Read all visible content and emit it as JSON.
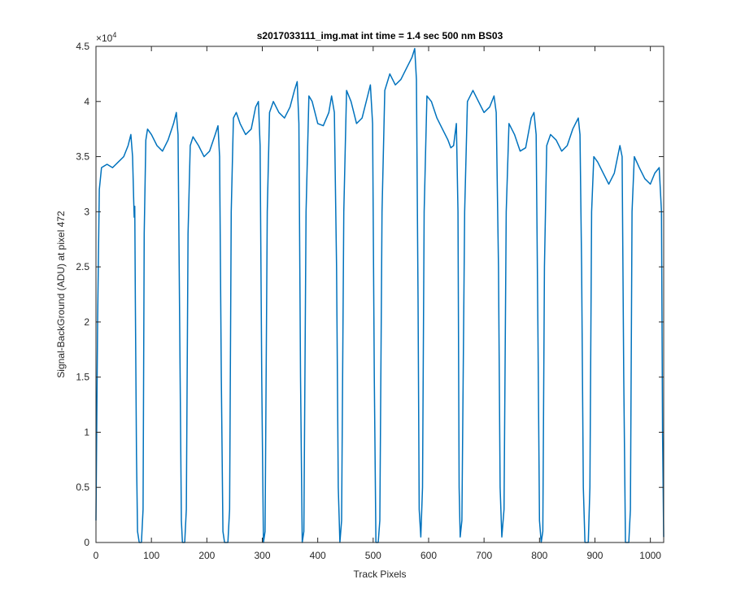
{
  "chart_data": {
    "type": "line",
    "title": "s2017033111_img.mat int time = 1.4 sec  500 nm BS03",
    "xlabel": "Track Pixels",
    "ylabel": "Signal-BackGround (ADU) at pixel 472",
    "xlim": [
      0,
      1024
    ],
    "ylim": [
      0,
      45000
    ],
    "x_ticks": [
      0,
      100,
      200,
      300,
      400,
      500,
      600,
      700,
      800,
      900,
      1000
    ],
    "y_ticks": [
      0,
      0.5,
      1,
      1.5,
      2,
      2.5,
      3,
      3.5,
      4,
      4.5
    ],
    "y_exponent_label": "×10",
    "y_exponent_power": "4",
    "grid": false,
    "series": [
      {
        "color": "#0072BD",
        "points": [
          [
            0,
            2000
          ],
          [
            3,
            20000
          ],
          [
            6,
            32000
          ],
          [
            10,
            34000
          ],
          [
            20,
            34300
          ],
          [
            30,
            34000
          ],
          [
            40,
            34500
          ],
          [
            50,
            35000
          ],
          [
            58,
            36000
          ],
          [
            63,
            37000
          ],
          [
            66,
            35000
          ],
          [
            68,
            31000
          ],
          [
            69,
            29500
          ],
          [
            70,
            30500
          ],
          [
            71,
            22000
          ],
          [
            73,
            8000
          ],
          [
            75,
            1000
          ],
          [
            78,
            0
          ],
          [
            82,
            0
          ],
          [
            85,
            3000
          ],
          [
            87,
            28000
          ],
          [
            90,
            36500
          ],
          [
            93,
            37500
          ],
          [
            100,
            37000
          ],
          [
            110,
            36000
          ],
          [
            120,
            35500
          ],
          [
            130,
            36500
          ],
          [
            140,
            38000
          ],
          [
            145,
            39000
          ],
          [
            148,
            37000
          ],
          [
            151,
            20000
          ],
          [
            154,
            2000
          ],
          [
            156,
            0
          ],
          [
            160,
            0
          ],
          [
            163,
            3000
          ],
          [
            166,
            28000
          ],
          [
            170,
            36000
          ],
          [
            175,
            36800
          ],
          [
            185,
            36000
          ],
          [
            195,
            35000
          ],
          [
            205,
            35500
          ],
          [
            215,
            37000
          ],
          [
            220,
            37800
          ],
          [
            223,
            35000
          ],
          [
            226,
            15000
          ],
          [
            229,
            1000
          ],
          [
            232,
            0
          ],
          [
            238,
            0
          ],
          [
            241,
            3000
          ],
          [
            244,
            30000
          ],
          [
            248,
            38500
          ],
          [
            253,
            39000
          ],
          [
            260,
            38000
          ],
          [
            270,
            37000
          ],
          [
            280,
            37500
          ],
          [
            288,
            39500
          ],
          [
            293,
            40000
          ],
          [
            296,
            36000
          ],
          [
            299,
            15000
          ],
          [
            302,
            0
          ],
          [
            305,
            1000
          ],
          [
            309,
            30000
          ],
          [
            313,
            39000
          ],
          [
            320,
            40000
          ],
          [
            330,
            39000
          ],
          [
            340,
            38500
          ],
          [
            350,
            39500
          ],
          [
            358,
            41000
          ],
          [
            363,
            41800
          ],
          [
            366,
            38000
          ],
          [
            369,
            15000
          ],
          [
            372,
            0
          ],
          [
            375,
            1000
          ],
          [
            379,
            30000
          ],
          [
            384,
            40500
          ],
          [
            390,
            40000
          ],
          [
            400,
            38000
          ],
          [
            410,
            37800
          ],
          [
            420,
            39000
          ],
          [
            425,
            40500
          ],
          [
            430,
            39000
          ],
          [
            434,
            25000
          ],
          [
            437,
            5000
          ],
          [
            440,
            0
          ],
          [
            443,
            2000
          ],
          [
            447,
            30000
          ],
          [
            452,
            41000
          ],
          [
            460,
            40000
          ],
          [
            470,
            38000
          ],
          [
            480,
            38500
          ],
          [
            490,
            40500
          ],
          [
            495,
            41500
          ],
          [
            499,
            38000
          ],
          [
            502,
            15000
          ],
          [
            505,
            0
          ],
          [
            509,
            0
          ],
          [
            512,
            2000
          ],
          [
            516,
            30000
          ],
          [
            521,
            41000
          ],
          [
            530,
            42500
          ],
          [
            540,
            41500
          ],
          [
            550,
            42000
          ],
          [
            560,
            43000
          ],
          [
            570,
            44000
          ],
          [
            575,
            44800
          ],
          [
            578,
            42000
          ],
          [
            581,
            22000
          ],
          [
            583,
            3000
          ],
          [
            586,
            500
          ],
          [
            589,
            5000
          ],
          [
            592,
            30000
          ],
          [
            597,
            40500
          ],
          [
            605,
            40000
          ],
          [
            615,
            38500
          ],
          [
            625,
            37500
          ],
          [
            635,
            36500
          ],
          [
            640,
            35800
          ],
          [
            645,
            36000
          ],
          [
            650,
            38000
          ],
          [
            653,
            30000
          ],
          [
            655,
            5000
          ],
          [
            657,
            500
          ],
          [
            660,
            2000
          ],
          [
            665,
            30000
          ],
          [
            670,
            40000
          ],
          [
            680,
            41000
          ],
          [
            690,
            40000
          ],
          [
            700,
            39000
          ],
          [
            710,
            39500
          ],
          [
            718,
            40500
          ],
          [
            722,
            39000
          ],
          [
            726,
            25000
          ],
          [
            729,
            5000
          ],
          [
            732,
            500
          ],
          [
            736,
            3000
          ],
          [
            740,
            30000
          ],
          [
            745,
            38000
          ],
          [
            755,
            37000
          ],
          [
            765,
            35500
          ],
          [
            775,
            35800
          ],
          [
            785,
            38500
          ],
          [
            790,
            39000
          ],
          [
            794,
            37000
          ],
          [
            797,
            20000
          ],
          [
            800,
            2000
          ],
          [
            803,
            0
          ],
          [
            806,
            1000
          ],
          [
            809,
            25000
          ],
          [
            813,
            36000
          ],
          [
            820,
            37000
          ],
          [
            830,
            36500
          ],
          [
            840,
            35500
          ],
          [
            850,
            36000
          ],
          [
            860,
            37500
          ],
          [
            870,
            38500
          ],
          [
            873,
            37000
          ],
          [
            876,
            25000
          ],
          [
            879,
            5000
          ],
          [
            882,
            0
          ],
          [
            888,
            0
          ],
          [
            891,
            5000
          ],
          [
            894,
            30000
          ],
          [
            898,
            35000
          ],
          [
            905,
            34500
          ],
          [
            915,
            33500
          ],
          [
            925,
            32500
          ],
          [
            935,
            33500
          ],
          [
            945,
            36000
          ],
          [
            949,
            35000
          ],
          [
            952,
            15000
          ],
          [
            955,
            0
          ],
          [
            961,
            0
          ],
          [
            964,
            3000
          ],
          [
            967,
            30000
          ],
          [
            971,
            35000
          ],
          [
            980,
            34000
          ],
          [
            990,
            33000
          ],
          [
            1000,
            32500
          ],
          [
            1008,
            33500
          ],
          [
            1016,
            34000
          ],
          [
            1020,
            30000
          ],
          [
            1022,
            10000
          ],
          [
            1024,
            500
          ]
        ]
      }
    ]
  }
}
